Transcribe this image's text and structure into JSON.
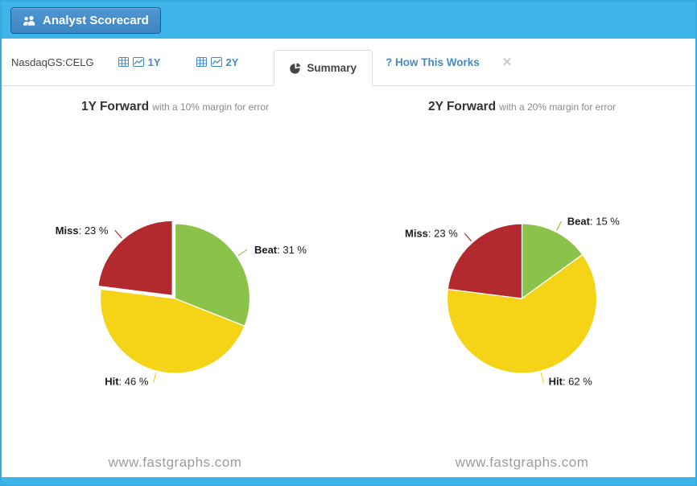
{
  "header": {
    "button_label": "Analyst Scorecard"
  },
  "tab_bar": {
    "ticker": "NasdaqGS:CELG",
    "tab_1y": "1Y",
    "tab_2y": "2Y",
    "tab_summary": "Summary",
    "tab_help": "? How This Works",
    "close_label": "✕"
  },
  "colors": {
    "accent_blue": "#3eb5e9",
    "link_blue": "#428bca",
    "beat_green": "#8bc34a",
    "hit_yellow": "#f5d316",
    "miss_red": "#b22a2e"
  },
  "chart_data": [
    {
      "type": "pie",
      "title": "1Y Forward",
      "subtitle": "with a 10% margin for error",
      "unit": "%",
      "watermark": "www.fastgraphs.com",
      "slices": [
        {
          "label": "Beat",
          "value": 31,
          "color": "#8bc34a",
          "exploded": false
        },
        {
          "label": "Hit",
          "value": 46,
          "color": "#f5d316",
          "exploded": false
        },
        {
          "label": "Miss",
          "value": 23,
          "color": "#b22a2e",
          "exploded": true
        }
      ]
    },
    {
      "type": "pie",
      "title": "2Y Forward",
      "subtitle": "with a 20% margin for error",
      "unit": "%",
      "watermark": "www.fastgraphs.com",
      "slices": [
        {
          "label": "Beat",
          "value": 15,
          "color": "#8bc34a",
          "exploded": false
        },
        {
          "label": "Hit",
          "value": 62,
          "color": "#f5d316",
          "exploded": false
        },
        {
          "label": "Miss",
          "value": 23,
          "color": "#b22a2e",
          "exploded": false
        }
      ]
    }
  ]
}
